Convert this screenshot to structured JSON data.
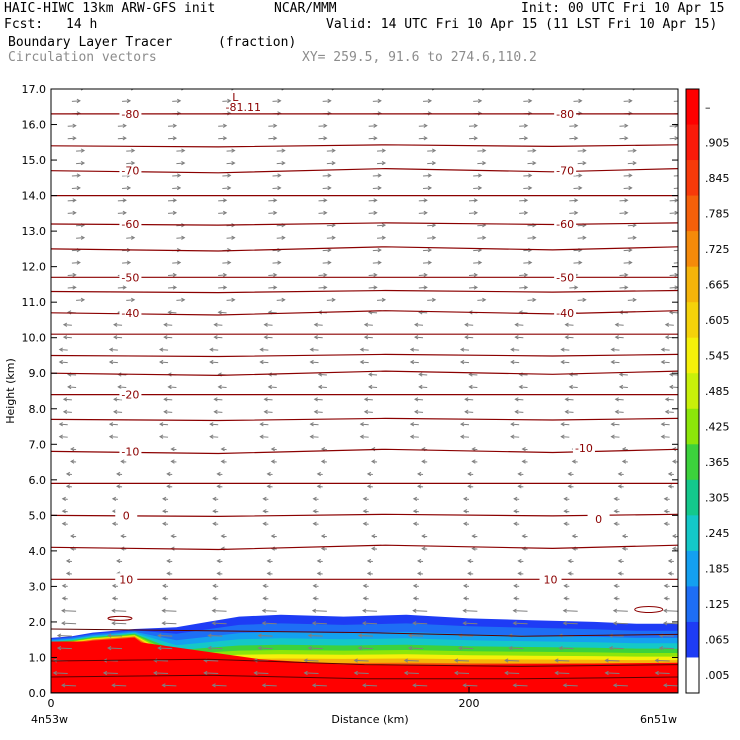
{
  "header": {
    "model": "HAIC-HIWC 13km ARW-GFS init",
    "org": "NCAR/MMM",
    "init": "Init: 00 UTC Fri 10 Apr 15",
    "fcst": "Fcst:",
    "fcst_hours": "14 h",
    "valid": "Valid: 14 UTC Fri 10 Apr 15 (11 LST Fri 10 Apr 15)",
    "field": "Boundary Layer Tracer",
    "units": "(fraction)",
    "vectors": "Circulation vectors",
    "xy": "XY= 259.5, 91.6 to 274.6,110.2"
  },
  "chart_data": {
    "type": "heatmap",
    "ylabel": "Height (km)",
    "xlabel": "Distance (km)",
    "ylim": [
      0,
      17
    ],
    "xlim": [
      0,
      300
    ],
    "yticks": [
      "0.0",
      "1.0",
      "2.0",
      "3.0",
      "4.0",
      "5.0",
      "6.0",
      "7.0",
      "8.0",
      "9.0",
      "10.0",
      "11.0",
      "12.0",
      "13.0",
      "14.0",
      "15.0",
      "16.0",
      "17.0"
    ],
    "xticks": [
      {
        "x": 0,
        "label": "0"
      },
      {
        "x": 200,
        "label": "200"
      }
    ],
    "x_endpoints": {
      "left": "4n53w",
      "right": "6n51w"
    },
    "colorbar_labels": [
      "–",
      ".905",
      ".845",
      ".785",
      ".725",
      ".665",
      ".605",
      ".545",
      ".485",
      ".425",
      ".365",
      ".305",
      ".245",
      ".185",
      ".125",
      ".065",
      ".005"
    ],
    "colorbar_colors": [
      "#ff0000",
      "#fa1a0a",
      "#f73a0a",
      "#f5600a",
      "#f58a0a",
      "#f5b40a",
      "#f5d20a",
      "#f5f00a",
      "#c8f00a",
      "#8ce60a",
      "#3cd23c",
      "#14c88c",
      "#14c8c8",
      "#14a0f0",
      "#1e6ef5",
      "#1e3cf5",
      "#ffffff"
    ],
    "contour_labels": [
      {
        "v": "-81.11",
        "x": 92,
        "y": 16.5,
        "low": "L"
      },
      {
        "v": "-80",
        "x": 38,
        "y": 16.3
      },
      {
        "v": "-80",
        "x": 246,
        "y": 16.3
      },
      {
        "v": "-70",
        "x": 38,
        "y": 14.7
      },
      {
        "v": "-70",
        "x": 246,
        "y": 14.7
      },
      {
        "v": "-60",
        "x": 38,
        "y": 13.2
      },
      {
        "v": "-60",
        "x": 246,
        "y": 13.2
      },
      {
        "v": "-50",
        "x": 38,
        "y": 11.7
      },
      {
        "v": "-50",
        "x": 246,
        "y": 11.7
      },
      {
        "v": "-40",
        "x": 38,
        "y": 10.7
      },
      {
        "v": "-40",
        "x": 246,
        "y": 10.7
      },
      {
        "v": "-20",
        "x": 38,
        "y": 8.4
      },
      {
        "v": "-10",
        "x": 38,
        "y": 6.8
      },
      {
        "v": "-10",
        "x": 255,
        "y": 6.9
      },
      {
        "v": "0",
        "x": 36,
        "y": 5.0
      },
      {
        "v": "0",
        "x": 262,
        "y": 4.9
      },
      {
        "v": "10",
        "x": 36,
        "y": 3.2
      },
      {
        "v": "10",
        "x": 239,
        "y": 3.2
      }
    ],
    "isotherm_levels": [
      16.3,
      15.4,
      14.7,
      14.0,
      13.2,
      12.5,
      11.7,
      11.3,
      10.7,
      10.1,
      9.5,
      9.0,
      8.4,
      7.7,
      6.8,
      5.9,
      5.0,
      4.1,
      3.2
    ]
  }
}
